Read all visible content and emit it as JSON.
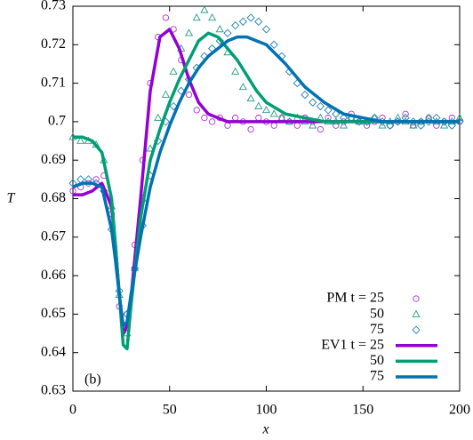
{
  "chart_data": {
    "type": "line",
    "x_label": "x",
    "y_label": "T",
    "annotation": "(b)",
    "xlim": [
      0,
      200
    ],
    "xticks": [
      0,
      50,
      100,
      150,
      200
    ],
    "ylim": [
      0.63,
      0.73
    ],
    "yticks": [
      0.63,
      0.64,
      0.65,
      0.66,
      0.67,
      0.68,
      0.69,
      0.7,
      0.71,
      0.72,
      0.73
    ],
    "grid": false,
    "legend": "lower right",
    "series": [
      {
        "name": "PM t = 25",
        "kind": "scatter",
        "marker": "circle",
        "color": "#b030d0",
        "x": [
          0,
          4,
          8,
          12,
          16,
          20,
          24,
          28,
          32,
          36,
          40,
          44,
          48,
          52,
          56,
          60,
          64,
          68,
          72,
          76,
          80,
          84,
          88,
          92,
          96,
          100,
          104,
          108,
          112,
          116,
          120,
          124,
          128,
          132,
          136,
          140,
          144,
          148,
          152,
          156,
          160,
          164,
          168,
          172,
          176,
          180,
          184,
          188,
          192,
          196,
          200
        ],
        "values": [
          0.682,
          0.683,
          0.684,
          0.685,
          0.686,
          0.676,
          0.652,
          0.65,
          0.668,
          0.69,
          0.71,
          0.722,
          0.727,
          0.724,
          0.716,
          0.707,
          0.703,
          0.701,
          0.7,
          0.701,
          0.699,
          0.701,
          0.7,
          0.698,
          0.701,
          0.7,
          0.699,
          0.701,
          0.7,
          0.699,
          0.701,
          0.7,
          0.698,
          0.701,
          0.699,
          0.7,
          0.702,
          0.7,
          0.699,
          0.7,
          0.701,
          0.699,
          0.7,
          0.702,
          0.699,
          0.7,
          0.701,
          0.699,
          0.7,
          0.701,
          0.7
        ]
      },
      {
        "name": "50",
        "kind": "scatter",
        "marker": "triangle",
        "color": "#20a080",
        "x": [
          0,
          4,
          8,
          12,
          16,
          20,
          24,
          28,
          32,
          36,
          40,
          44,
          48,
          52,
          56,
          60,
          64,
          68,
          72,
          76,
          80,
          84,
          88,
          92,
          96,
          100,
          104,
          108,
          112,
          116,
          120,
          124,
          128,
          132,
          136,
          140,
          144,
          148,
          152,
          156,
          160,
          164,
          168,
          172,
          176,
          180,
          184,
          188,
          192,
          196,
          200
        ],
        "values": [
          0.696,
          0.695,
          0.695,
          0.694,
          0.69,
          0.678,
          0.655,
          0.645,
          0.662,
          0.68,
          0.693,
          0.701,
          0.707,
          0.713,
          0.719,
          0.723,
          0.727,
          0.729,
          0.727,
          0.724,
          0.718,
          0.713,
          0.709,
          0.706,
          0.704,
          0.703,
          0.702,
          0.701,
          0.7,
          0.701,
          0.7,
          0.699,
          0.701,
          0.7,
          0.7,
          0.699,
          0.701,
          0.7,
          0.7,
          0.701,
          0.699,
          0.7,
          0.701,
          0.7,
          0.699,
          0.7,
          0.701,
          0.7,
          0.699,
          0.7,
          0.701
        ]
      },
      {
        "name": "75",
        "kind": "scatter",
        "marker": "diamond",
        "color": "#2080b8",
        "x": [
          0,
          4,
          8,
          12,
          16,
          20,
          24,
          28,
          32,
          36,
          40,
          44,
          48,
          52,
          56,
          60,
          64,
          68,
          72,
          76,
          80,
          84,
          88,
          92,
          96,
          100,
          104,
          108,
          112,
          116,
          120,
          124,
          128,
          132,
          136,
          140,
          144,
          148,
          152,
          156,
          160,
          164,
          168,
          172,
          176,
          180,
          184,
          188,
          192,
          196,
          200
        ],
        "values": [
          0.684,
          0.685,
          0.685,
          0.684,
          0.682,
          0.672,
          0.656,
          0.65,
          0.662,
          0.673,
          0.686,
          0.695,
          0.7,
          0.704,
          0.708,
          0.711,
          0.714,
          0.717,
          0.719,
          0.721,
          0.723,
          0.725,
          0.726,
          0.727,
          0.726,
          0.724,
          0.72,
          0.717,
          0.713,
          0.71,
          0.707,
          0.705,
          0.704,
          0.703,
          0.702,
          0.701,
          0.701,
          0.7,
          0.7,
          0.701,
          0.7,
          0.699,
          0.7,
          0.701,
          0.7,
          0.699,
          0.7,
          0.701,
          0.7,
          0.699,
          0.7
        ]
      },
      {
        "name": "EV1 t = 25",
        "kind": "line",
        "color": "#9400d3",
        "x": [
          0,
          5,
          10,
          15,
          20,
          22,
          24,
          26,
          28,
          30,
          35,
          40,
          45,
          50,
          55,
          60,
          65,
          70,
          75,
          80,
          85,
          90,
          95,
          100,
          110,
          120,
          130,
          140,
          150,
          160,
          170,
          180,
          190,
          200
        ],
        "values": [
          0.681,
          0.681,
          0.682,
          0.684,
          0.678,
          0.668,
          0.655,
          0.645,
          0.647,
          0.654,
          0.68,
          0.708,
          0.722,
          0.724,
          0.719,
          0.711,
          0.705,
          0.702,
          0.701,
          0.7,
          0.7,
          0.7,
          0.7,
          0.7,
          0.7,
          0.7,
          0.7,
          0.7,
          0.7,
          0.7,
          0.7,
          0.7,
          0.7,
          0.7
        ]
      },
      {
        "name": "50",
        "kind": "line",
        "color": "#009e73",
        "x": [
          0,
          5,
          10,
          15,
          20,
          22,
          24,
          26,
          28,
          30,
          35,
          40,
          45,
          50,
          55,
          60,
          65,
          70,
          75,
          80,
          85,
          90,
          95,
          100,
          110,
          120,
          130,
          140,
          150,
          160,
          170,
          180,
          190,
          200
        ],
        "values": [
          0.696,
          0.696,
          0.695,
          0.692,
          0.68,
          0.668,
          0.655,
          0.642,
          0.641,
          0.652,
          0.675,
          0.69,
          0.698,
          0.705,
          0.711,
          0.716,
          0.721,
          0.723,
          0.722,
          0.719,
          0.716,
          0.712,
          0.708,
          0.705,
          0.702,
          0.701,
          0.7,
          0.7,
          0.7,
          0.7,
          0.7,
          0.7,
          0.7,
          0.7
        ]
      },
      {
        "name": "75",
        "kind": "line",
        "color": "#0072b2",
        "x": [
          0,
          5,
          10,
          15,
          20,
          22,
          24,
          26,
          28,
          30,
          35,
          40,
          45,
          50,
          55,
          60,
          65,
          70,
          75,
          80,
          85,
          90,
          95,
          100,
          110,
          120,
          130,
          140,
          150,
          160,
          170,
          180,
          190,
          200
        ],
        "values": [
          0.683,
          0.684,
          0.684,
          0.683,
          0.672,
          0.664,
          0.655,
          0.647,
          0.648,
          0.655,
          0.67,
          0.683,
          0.692,
          0.699,
          0.705,
          0.71,
          0.714,
          0.717,
          0.719,
          0.721,
          0.722,
          0.722,
          0.721,
          0.72,
          0.715,
          0.709,
          0.705,
          0.702,
          0.701,
          0.7,
          0.7,
          0.7,
          0.7,
          0.7
        ]
      }
    ]
  }
}
